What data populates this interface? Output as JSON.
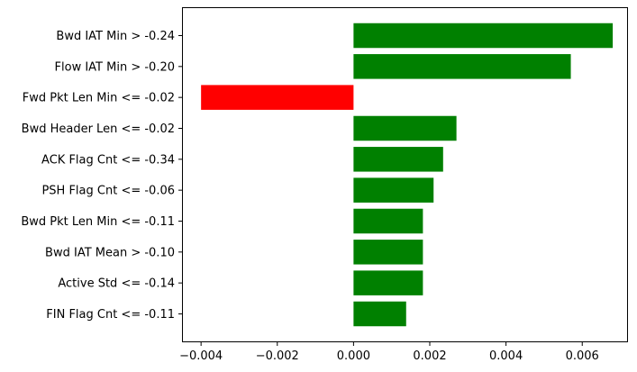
{
  "chart_data": {
    "type": "bar",
    "orientation": "horizontal",
    "title": "",
    "xlabel": "",
    "ylabel": "",
    "xlim": [
      -0.0045,
      0.0072
    ],
    "xticks": [
      {
        "value": -0.004,
        "label": "−0.004"
      },
      {
        "value": -0.002,
        "label": "−0.002"
      },
      {
        "value": 0.0,
        "label": "0.000"
      },
      {
        "value": 0.002,
        "label": "0.002"
      },
      {
        "value": 0.004,
        "label": "0.004"
      },
      {
        "value": 0.006,
        "label": "0.006"
      }
    ],
    "grid": false,
    "legend": false,
    "colors": {
      "positive": "#008000",
      "negative": "#ff0000"
    },
    "categories": [
      "Bwd IAT Min > -0.24",
      "Flow IAT Min > -0.20",
      "Fwd Pkt Len Min <= -0.02",
      "Bwd Header Len <= -0.02",
      "ACK Flag Cnt <= -0.34",
      "PSH Flag Cnt <= -0.06",
      "Bwd Pkt Len Min <= -0.11",
      "Bwd IAT Mean > -0.10",
      "Active Std <= -0.14",
      "FIN Flag Cnt <= -0.11"
    ],
    "values": [
      0.0068,
      0.0057,
      -0.004,
      0.0027,
      0.00235,
      0.0021,
      0.00182,
      0.00182,
      0.00182,
      0.00138
    ]
  }
}
